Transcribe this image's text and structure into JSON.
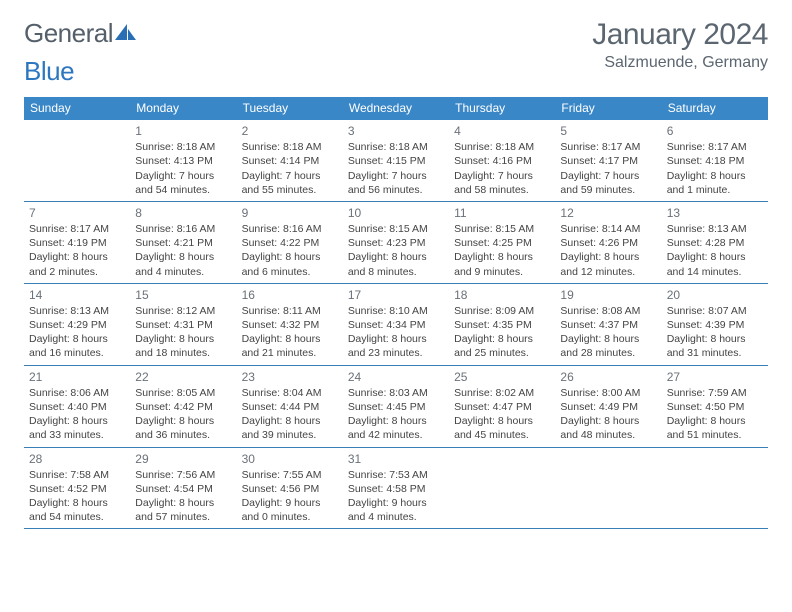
{
  "logo": {
    "part1": "General",
    "part2": "Blue"
  },
  "header": {
    "month_title": "January 2024",
    "location": "Salzmuende, Germany"
  },
  "style": {
    "header_bg": "#3a87c8",
    "header_fg": "#ffffff",
    "row_border": "#3a7fb5",
    "text": "#444444",
    "daynum": "#6a7178",
    "title_color": "#5b6670",
    "logo_gray": "#555f6a",
    "logo_blue": "#2d77c1",
    "page_bg": "#ffffff",
    "font_size_body": 10.5,
    "font_size_title": 30
  },
  "dow": [
    "Sunday",
    "Monday",
    "Tuesday",
    "Wednesday",
    "Thursday",
    "Friday",
    "Saturday"
  ],
  "weeks": [
    [
      {
        "n": "",
        "sr": "",
        "ss": "",
        "dl": ""
      },
      {
        "n": "1",
        "sr": "Sunrise: 8:18 AM",
        "ss": "Sunset: 4:13 PM",
        "dl": "Daylight: 7 hours and 54 minutes."
      },
      {
        "n": "2",
        "sr": "Sunrise: 8:18 AM",
        "ss": "Sunset: 4:14 PM",
        "dl": "Daylight: 7 hours and 55 minutes."
      },
      {
        "n": "3",
        "sr": "Sunrise: 8:18 AM",
        "ss": "Sunset: 4:15 PM",
        "dl": "Daylight: 7 hours and 56 minutes."
      },
      {
        "n": "4",
        "sr": "Sunrise: 8:18 AM",
        "ss": "Sunset: 4:16 PM",
        "dl": "Daylight: 7 hours and 58 minutes."
      },
      {
        "n": "5",
        "sr": "Sunrise: 8:17 AM",
        "ss": "Sunset: 4:17 PM",
        "dl": "Daylight: 7 hours and 59 minutes."
      },
      {
        "n": "6",
        "sr": "Sunrise: 8:17 AM",
        "ss": "Sunset: 4:18 PM",
        "dl": "Daylight: 8 hours and 1 minute."
      }
    ],
    [
      {
        "n": "7",
        "sr": "Sunrise: 8:17 AM",
        "ss": "Sunset: 4:19 PM",
        "dl": "Daylight: 8 hours and 2 minutes."
      },
      {
        "n": "8",
        "sr": "Sunrise: 8:16 AM",
        "ss": "Sunset: 4:21 PM",
        "dl": "Daylight: 8 hours and 4 minutes."
      },
      {
        "n": "9",
        "sr": "Sunrise: 8:16 AM",
        "ss": "Sunset: 4:22 PM",
        "dl": "Daylight: 8 hours and 6 minutes."
      },
      {
        "n": "10",
        "sr": "Sunrise: 8:15 AM",
        "ss": "Sunset: 4:23 PM",
        "dl": "Daylight: 8 hours and 8 minutes."
      },
      {
        "n": "11",
        "sr": "Sunrise: 8:15 AM",
        "ss": "Sunset: 4:25 PM",
        "dl": "Daylight: 8 hours and 9 minutes."
      },
      {
        "n": "12",
        "sr": "Sunrise: 8:14 AM",
        "ss": "Sunset: 4:26 PM",
        "dl": "Daylight: 8 hours and 12 minutes."
      },
      {
        "n": "13",
        "sr": "Sunrise: 8:13 AM",
        "ss": "Sunset: 4:28 PM",
        "dl": "Daylight: 8 hours and 14 minutes."
      }
    ],
    [
      {
        "n": "14",
        "sr": "Sunrise: 8:13 AM",
        "ss": "Sunset: 4:29 PM",
        "dl": "Daylight: 8 hours and 16 minutes."
      },
      {
        "n": "15",
        "sr": "Sunrise: 8:12 AM",
        "ss": "Sunset: 4:31 PM",
        "dl": "Daylight: 8 hours and 18 minutes."
      },
      {
        "n": "16",
        "sr": "Sunrise: 8:11 AM",
        "ss": "Sunset: 4:32 PM",
        "dl": "Daylight: 8 hours and 21 minutes."
      },
      {
        "n": "17",
        "sr": "Sunrise: 8:10 AM",
        "ss": "Sunset: 4:34 PM",
        "dl": "Daylight: 8 hours and 23 minutes."
      },
      {
        "n": "18",
        "sr": "Sunrise: 8:09 AM",
        "ss": "Sunset: 4:35 PM",
        "dl": "Daylight: 8 hours and 25 minutes."
      },
      {
        "n": "19",
        "sr": "Sunrise: 8:08 AM",
        "ss": "Sunset: 4:37 PM",
        "dl": "Daylight: 8 hours and 28 minutes."
      },
      {
        "n": "20",
        "sr": "Sunrise: 8:07 AM",
        "ss": "Sunset: 4:39 PM",
        "dl": "Daylight: 8 hours and 31 minutes."
      }
    ],
    [
      {
        "n": "21",
        "sr": "Sunrise: 8:06 AM",
        "ss": "Sunset: 4:40 PM",
        "dl": "Daylight: 8 hours and 33 minutes."
      },
      {
        "n": "22",
        "sr": "Sunrise: 8:05 AM",
        "ss": "Sunset: 4:42 PM",
        "dl": "Daylight: 8 hours and 36 minutes."
      },
      {
        "n": "23",
        "sr": "Sunrise: 8:04 AM",
        "ss": "Sunset: 4:44 PM",
        "dl": "Daylight: 8 hours and 39 minutes."
      },
      {
        "n": "24",
        "sr": "Sunrise: 8:03 AM",
        "ss": "Sunset: 4:45 PM",
        "dl": "Daylight: 8 hours and 42 minutes."
      },
      {
        "n": "25",
        "sr": "Sunrise: 8:02 AM",
        "ss": "Sunset: 4:47 PM",
        "dl": "Daylight: 8 hours and 45 minutes."
      },
      {
        "n": "26",
        "sr": "Sunrise: 8:00 AM",
        "ss": "Sunset: 4:49 PM",
        "dl": "Daylight: 8 hours and 48 minutes."
      },
      {
        "n": "27",
        "sr": "Sunrise: 7:59 AM",
        "ss": "Sunset: 4:50 PM",
        "dl": "Daylight: 8 hours and 51 minutes."
      }
    ],
    [
      {
        "n": "28",
        "sr": "Sunrise: 7:58 AM",
        "ss": "Sunset: 4:52 PM",
        "dl": "Daylight: 8 hours and 54 minutes."
      },
      {
        "n": "29",
        "sr": "Sunrise: 7:56 AM",
        "ss": "Sunset: 4:54 PM",
        "dl": "Daylight: 8 hours and 57 minutes."
      },
      {
        "n": "30",
        "sr": "Sunrise: 7:55 AM",
        "ss": "Sunset: 4:56 PM",
        "dl": "Daylight: 9 hours and 0 minutes."
      },
      {
        "n": "31",
        "sr": "Sunrise: 7:53 AM",
        "ss": "Sunset: 4:58 PM",
        "dl": "Daylight: 9 hours and 4 minutes."
      },
      {
        "n": "",
        "sr": "",
        "ss": "",
        "dl": ""
      },
      {
        "n": "",
        "sr": "",
        "ss": "",
        "dl": ""
      },
      {
        "n": "",
        "sr": "",
        "ss": "",
        "dl": ""
      }
    ]
  ]
}
